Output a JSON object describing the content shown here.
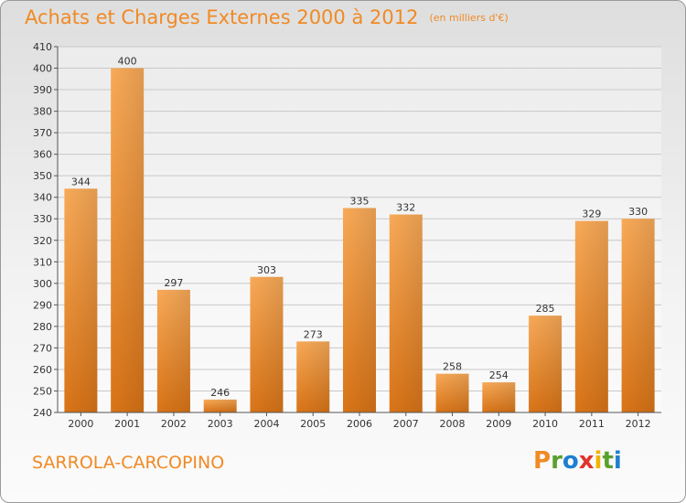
{
  "header": {
    "title": "Achats et Charges Externes 2000 à 2012",
    "subtitle": "(en milliers d'€)"
  },
  "footer": {
    "commune": "SARROLA-CARCOPINO",
    "brand": "Proxiti"
  },
  "colors": {
    "accent": "#f08a24",
    "bar_light": "#f7a752",
    "bar_dark": "#c96a14",
    "brand_letters": [
      "#f08a24",
      "#5aa02c",
      "#1e7fd0",
      "#e0342c",
      "#f0b400",
      "#5aa02c",
      "#1e7fd0"
    ]
  },
  "chart_data": {
    "type": "bar",
    "title": "Achats et Charges Externes 2000 à 2012",
    "subtitle": "(en milliers d'€)",
    "xlabel": "",
    "ylabel": "",
    "categories": [
      "2000",
      "2001",
      "2002",
      "2003",
      "2004",
      "2005",
      "2006",
      "2007",
      "2008",
      "2009",
      "2010",
      "2011",
      "2012"
    ],
    "values": [
      344,
      400,
      297,
      246,
      303,
      273,
      335,
      332,
      258,
      254,
      285,
      329,
      330
    ],
    "ylim": [
      240,
      410
    ],
    "yticks": [
      240,
      250,
      260,
      270,
      280,
      290,
      300,
      310,
      320,
      330,
      340,
      350,
      360,
      370,
      380,
      390,
      400,
      410
    ],
    "grid": "horizontal",
    "data_labels": true
  }
}
